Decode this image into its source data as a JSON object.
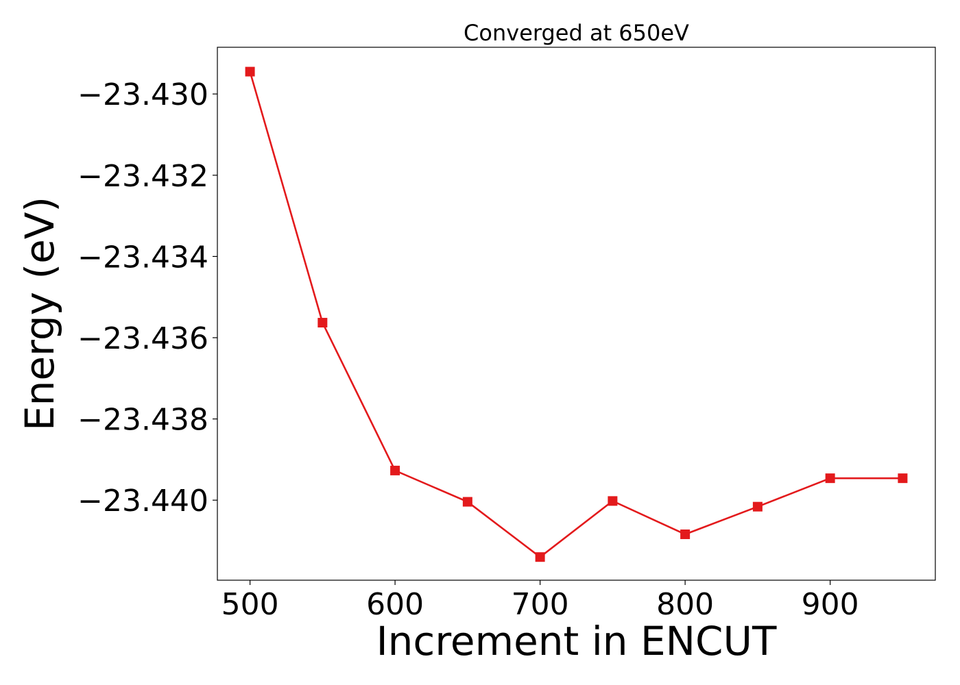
{
  "chart_data": {
    "type": "line",
    "title": "Converged at 650eV",
    "xlabel": "Increment in ENCUT",
    "ylabel": "Energy (eV)",
    "x": [
      500,
      550,
      600,
      650,
      700,
      750,
      800,
      850,
      900,
      950
    ],
    "series": [
      {
        "values": [
          -23.42945,
          -23.43563,
          -23.43927,
          -23.44004,
          -23.4414,
          -23.44002,
          -23.44084,
          -23.44016,
          -23.43946,
          -23.43946
        ],
        "color": "#e31a1c",
        "marker": "square"
      }
    ],
    "xlim": [
      477.5,
      972.5
    ],
    "ylim": [
      -23.44197,
      -23.42885
    ],
    "xticks": [
      500,
      600,
      700,
      800,
      900
    ],
    "xtick_labels": [
      "500",
      "600",
      "700",
      "800",
      "900"
    ],
    "yticks": [
      -23.43,
      -23.432,
      -23.434,
      -23.436,
      -23.438,
      -23.44
    ],
    "ytick_labels": [
      "−23.430",
      "−23.432",
      "−23.434",
      "−23.436",
      "−23.438",
      "−23.440"
    ],
    "grid": false,
    "legend": "none"
  }
}
